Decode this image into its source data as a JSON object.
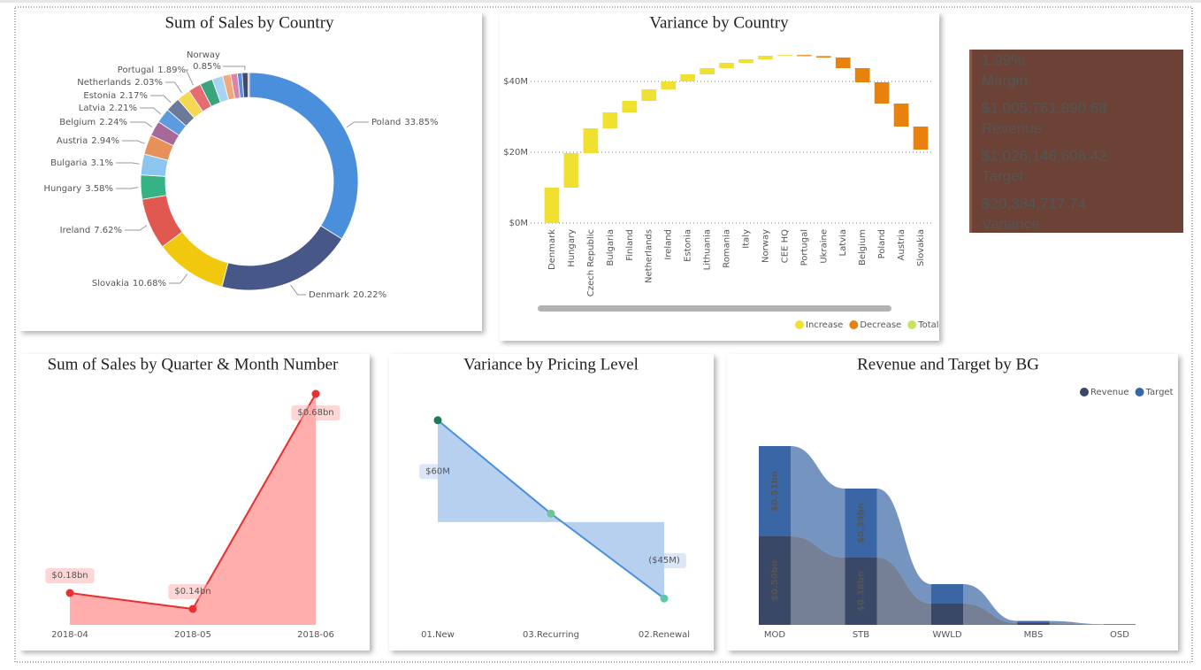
{
  "chart_data": [
    {
      "type": "pie",
      "title": "Sum of Sales by Country",
      "categories": [
        "Poland",
        "Denmark",
        "Slovakia",
        "Ireland",
        "Hungary",
        "Bulgaria",
        "Austria",
        "Belgium",
        "Latvia",
        "Estonia",
        "Netherlands",
        "Portugal",
        null,
        null,
        null,
        null,
        null,
        "Norway",
        null
      ],
      "values": [
        33.85,
        20.22,
        10.68,
        7.62,
        3.58,
        3.1,
        2.94,
        2.24,
        2.21,
        2.17,
        2.03,
        1.89,
        1.9,
        1.6,
        1.2,
        1.0,
        0.7,
        0.85,
        0.22
      ],
      "value_labels": [
        "33.85%",
        "20.22%",
        "10.68%",
        "7.62%",
        "3.58%",
        "3.1%",
        "2.94%",
        "2.24%",
        "2.21%",
        "2.17%",
        "2.03%",
        "1.89%",
        null,
        null,
        null,
        null,
        null,
        "0.85%",
        null
      ],
      "colors": [
        "#4a8fdc",
        "#475787",
        "#f2c80f",
        "#e0584f",
        "#36b385",
        "#8cc6f0",
        "#e8905a",
        "#a66999",
        "#5d9be0",
        "#6b7a99",
        "#f5d850",
        "#e66c73",
        "#3aa57c",
        "#a6d4f2",
        "#f2a77c",
        "#d987a8",
        "#5b8ee6",
        "#3d4a73",
        "#c9a227"
      ]
    },
    {
      "type": "waterfall",
      "title": "Variance by Country",
      "categories": [
        "Denmark",
        "Hungary",
        "Czech Republic",
        "Bulgaria",
        "Finland",
        "Netherlands",
        "Ireland",
        "Estonia",
        "Lithuania",
        "Romania",
        "Italy",
        "Norway",
        "CEE HQ",
        "Portugal",
        "Ukraine",
        "Latvia",
        "Belgium",
        "Poland",
        "Austria",
        "Slovakia"
      ],
      "values": [
        10,
        9.75,
        7,
        4.5,
        3.25,
        3.25,
        2.25,
        2,
        1.75,
        1.5,
        1,
        1,
        0.2,
        -0.3,
        -0.4,
        -3,
        -4,
        -6,
        -6.5,
        -6.5
      ],
      "ylim": [
        0,
        50
      ],
      "yticks": [
        {
          "value": 0,
          "label": "$0M"
        },
        {
          "value": 20,
          "label": "$20M"
        },
        {
          "value": 40,
          "label": "$40M"
        }
      ],
      "grid": true,
      "legend": "bottom-right",
      "legend_items": [
        {
          "name": "Increase",
          "color": "#f0e130"
        },
        {
          "name": "Decrease",
          "color": "#e8820c"
        },
        {
          "name": "Total",
          "color": "#c3e65a"
        }
      ]
    },
    {
      "type": "area",
      "title": "Sum of Sales by Quarter & Month Number",
      "categories": [
        "2018-04",
        "2018-05",
        "2018-06"
      ],
      "values": [
        0.18,
        0.14,
        0.68
      ],
      "value_labels": [
        "$0.18bn",
        "$0.14bn",
        "$0.68bn"
      ],
      "color": "#e8302f",
      "fill_color": "#ffadad",
      "ylim": [
        0.1,
        0.7
      ]
    },
    {
      "type": "area",
      "title": "Variance by Pricing Level",
      "categories": [
        "01.New",
        "03.Recurring",
        "02.Renewal"
      ],
      "values": [
        60,
        5,
        -45
      ],
      "value_labels": [
        "$60M",
        null,
        "($45M)"
      ],
      "color": "#4a8fdc",
      "fill_color": "#b7d0f0",
      "marker_colors": [
        "#1f7a55",
        "#6cc592",
        "#5cc8a5"
      ],
      "ylim": [
        -60,
        75
      ]
    },
    {
      "type": "ribbon",
      "title": "Revenue and Target by BG",
      "categories": [
        "MOD",
        "STB",
        "WWLD",
        "MBS",
        "OSD"
      ],
      "series": [
        {
          "name": "Revenue",
          "color": "#3a4868",
          "values": [
            0.5,
            0.38,
            0.12,
            0.01,
            0.002
          ],
          "value_labels": [
            "$0.50bn",
            "$0.38bn",
            null,
            null,
            null
          ]
        },
        {
          "name": "Target",
          "color": "#3b66a5",
          "values": [
            0.51,
            0.39,
            0.11,
            0.012,
            0.002
          ],
          "value_labels": [
            "$0.51bn",
            "$0.39bn",
            null,
            null,
            null
          ]
        }
      ],
      "ylim": [
        0,
        1.2
      ],
      "legend": "top-right"
    }
  ],
  "kpi_card": {
    "items": [
      {
        "value": "1.99%",
        "label": "Margin"
      },
      {
        "value": "$1,005,761,890.68",
        "label": "Revenue"
      },
      {
        "value": "$1,026,146,608.42",
        "label": "Target"
      },
      {
        "value": "$20,384,717.74",
        "label": "Variance"
      }
    ]
  }
}
